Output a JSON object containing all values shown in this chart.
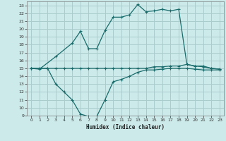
{
  "bg_color": "#cceaea",
  "grid_color": "#aacccc",
  "line_color": "#1a6b6b",
  "xlim": [
    -0.5,
    23.5
  ],
  "ylim": [
    9,
    23.5
  ],
  "xlabel": "Humidex (Indice chaleur)",
  "xticks": [
    0,
    1,
    2,
    3,
    4,
    5,
    6,
    7,
    8,
    9,
    10,
    11,
    12,
    13,
    14,
    15,
    16,
    17,
    18,
    19,
    20,
    21,
    22,
    23
  ],
  "yticks": [
    9,
    10,
    11,
    12,
    13,
    14,
    15,
    16,
    17,
    18,
    19,
    20,
    21,
    22,
    23
  ],
  "curve1_x": [
    0,
    1,
    3,
    5,
    6,
    7,
    8,
    9,
    10,
    11,
    12,
    13,
    14,
    15,
    16,
    17,
    18,
    19,
    20,
    21,
    22,
    23
  ],
  "curve1_y": [
    15.0,
    14.9,
    16.5,
    18.2,
    19.7,
    17.5,
    17.5,
    19.8,
    21.5,
    21.5,
    21.8,
    23.1,
    22.2,
    22.3,
    22.5,
    22.3,
    22.5,
    15.5,
    15.3,
    15.3,
    15.0,
    14.9
  ],
  "curve2_x": [
    0,
    1,
    2,
    3,
    4,
    5,
    6,
    7,
    8,
    9,
    10,
    11,
    12,
    13,
    14,
    15,
    16,
    17,
    18,
    19,
    20,
    21,
    22,
    23
  ],
  "curve2_y": [
    15.0,
    15.0,
    15.0,
    15.0,
    15.0,
    15.0,
    15.0,
    15.0,
    15.0,
    15.0,
    15.0,
    15.0,
    15.0,
    15.0,
    15.0,
    15.2,
    15.2,
    15.3,
    15.3,
    15.5,
    15.3,
    15.2,
    15.0,
    14.9
  ],
  "curve3_x": [
    0,
    1,
    2,
    3,
    4,
    5,
    6,
    7,
    8,
    9,
    10,
    11,
    12,
    13,
    14,
    15,
    16,
    17,
    18,
    19,
    20,
    21,
    22,
    23
  ],
  "curve3_y": [
    15.0,
    15.0,
    15.0,
    13.0,
    12.0,
    11.0,
    9.2,
    8.9,
    8.9,
    11.0,
    13.3,
    13.6,
    14.0,
    14.5,
    14.8,
    14.8,
    14.9,
    15.0,
    15.0,
    15.0,
    14.9,
    14.8,
    14.8,
    14.8
  ]
}
